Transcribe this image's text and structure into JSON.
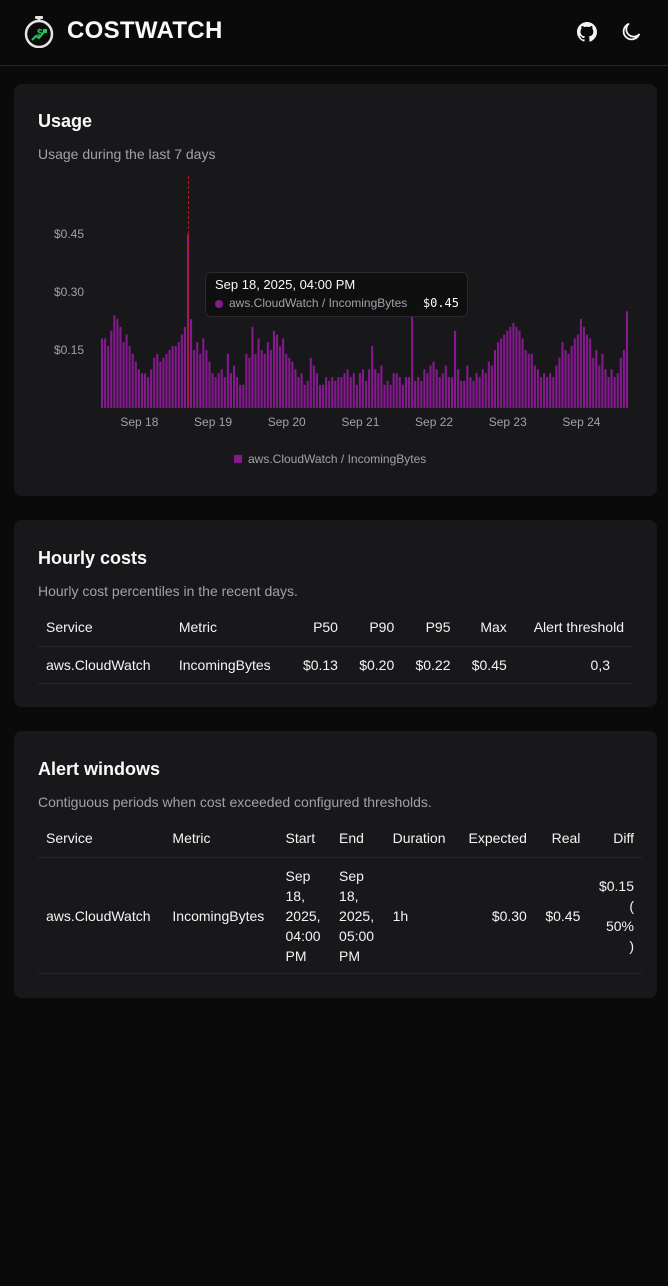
{
  "header": {
    "brand": "COSTWATCH",
    "logo_icon": "stopwatch-dollar-icon",
    "github_icon": "github-icon",
    "theme_icon": "moon-icon"
  },
  "usage": {
    "title": "Usage",
    "subtitle": "Usage during the last 7 days",
    "tooltip": {
      "date": "Sep 18, 2025, 04:00 PM",
      "series": "aws.CloudWatch / IncomingBytes",
      "value": "$0.45"
    },
    "legend": "aws.CloudWatch / IncomingBytes"
  },
  "chart_data": {
    "type": "bar",
    "series_name": "aws.CloudWatch / IncomingBytes",
    "color": "#86198f",
    "ylim": [
      0,
      0.6
    ],
    "yticks": [
      {
        "v": 0.15,
        "label": "$0.15"
      },
      {
        "v": 0.3,
        "label": "$0.30"
      },
      {
        "v": 0.45,
        "label": "$0.45"
      }
    ],
    "xticks": [
      {
        "i": 12,
        "label": "Sep 18"
      },
      {
        "i": 36,
        "label": "Sep 19"
      },
      {
        "i": 60,
        "label": "Sep 20"
      },
      {
        "i": 84,
        "label": "Sep 21"
      },
      {
        "i": 108,
        "label": "Sep 22"
      },
      {
        "i": 132,
        "label": "Sep 23"
      },
      {
        "i": 156,
        "label": "Sep 24"
      }
    ],
    "highlight_index": 28,
    "values": [
      0.18,
      0.18,
      0.16,
      0.2,
      0.24,
      0.23,
      0.21,
      0.17,
      0.19,
      0.16,
      0.14,
      0.12,
      0.1,
      0.09,
      0.09,
      0.08,
      0.1,
      0.13,
      0.14,
      0.12,
      0.13,
      0.14,
      0.15,
      0.16,
      0.16,
      0.17,
      0.19,
      0.21,
      0.45,
      0.23,
      0.15,
      0.17,
      0.14,
      0.18,
      0.15,
      0.12,
      0.09,
      0.08,
      0.09,
      0.1,
      0.08,
      0.14,
      0.09,
      0.11,
      0.08,
      0.06,
      0.06,
      0.14,
      0.13,
      0.21,
      0.14,
      0.18,
      0.15,
      0.14,
      0.17,
      0.15,
      0.2,
      0.19,
      0.16,
      0.18,
      0.14,
      0.13,
      0.12,
      0.1,
      0.08,
      0.09,
      0.06,
      0.07,
      0.13,
      0.11,
      0.09,
      0.06,
      0.06,
      0.08,
      0.07,
      0.08,
      0.07,
      0.08,
      0.08,
      0.09,
      0.1,
      0.08,
      0.09,
      0.06,
      0.09,
      0.1,
      0.07,
      0.1,
      0.16,
      0.1,
      0.09,
      0.11,
      0.06,
      0.07,
      0.06,
      0.09,
      0.09,
      0.08,
      0.06,
      0.08,
      0.08,
      0.24,
      0.07,
      0.08,
      0.07,
      0.1,
      0.09,
      0.11,
      0.12,
      0.1,
      0.08,
      0.09,
      0.11,
      0.08,
      0.08,
      0.2,
      0.1,
      0.07,
      0.07,
      0.11,
      0.08,
      0.07,
      0.09,
      0.08,
      0.1,
      0.09,
      0.12,
      0.11,
      0.15,
      0.17,
      0.18,
      0.19,
      0.2,
      0.21,
      0.22,
      0.21,
      0.2,
      0.18,
      0.15,
      0.14,
      0.14,
      0.11,
      0.1,
      0.08,
      0.09,
      0.08,
      0.09,
      0.08,
      0.11,
      0.13,
      0.17,
      0.15,
      0.14,
      0.16,
      0.18,
      0.19,
      0.23,
      0.21,
      0.19,
      0.18,
      0.13,
      0.15,
      0.11,
      0.14,
      0.1,
      0.08,
      0.1,
      0.08,
      0.09,
      0.13,
      0.15,
      0.25
    ]
  },
  "hourly": {
    "title": "Hourly costs",
    "subtitle": "Hourly cost percentiles in the recent days.",
    "columns": [
      "Service",
      "Metric",
      "P50",
      "P90",
      "P95",
      "Max",
      "Alert threshold"
    ],
    "rows": [
      [
        "aws.CloudWatch",
        "IncomingBytes",
        "$0.13",
        "$0.20",
        "$0.22",
        "$0.45",
        "0,3"
      ]
    ]
  },
  "alerts": {
    "title": "Alert windows",
    "subtitle": "Contiguous periods when cost exceeded configured thresholds.",
    "columns": [
      "Service",
      "Metric",
      "Start",
      "End",
      "Duration",
      "Expected",
      "Real",
      "Diff"
    ],
    "rows": [
      {
        "service": "aws.CloudWatch",
        "metric": "IncomingBytes",
        "start_lines": [
          "Sep",
          "18,",
          "2025,",
          "04:00",
          "PM"
        ],
        "end_lines": [
          "Sep",
          "18,",
          "2025,",
          "05:00",
          "PM"
        ],
        "duration": "1h",
        "expected": "$0.30",
        "real": "$0.45",
        "diff_lines": [
          "$0.15",
          "(",
          "50%",
          ")"
        ]
      }
    ]
  }
}
